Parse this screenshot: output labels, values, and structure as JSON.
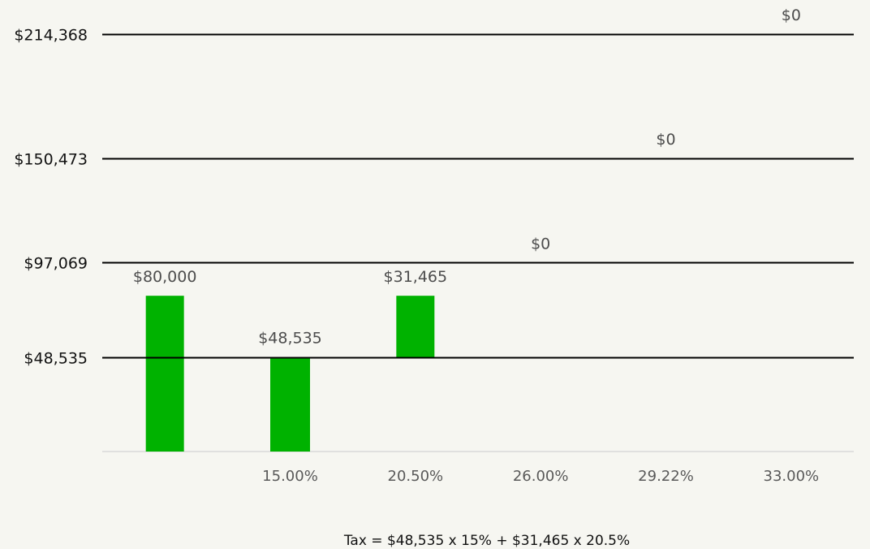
{
  "chart_data": {
    "type": "bar",
    "categories": [
      "",
      "15.00%",
      "20.50%",
      "26.00%",
      "29.22%",
      "33.00%"
    ],
    "values": [
      80000,
      48535,
      31465,
      0,
      0,
      0
    ],
    "value_labels": [
      "$80,000",
      "$48,535",
      "$31,465",
      "$0",
      "$0",
      "$0"
    ],
    "bar_bases": [
      0,
      0,
      48535,
      97069,
      150473,
      214368
    ],
    "threshold_lines": [
      {
        "value": 48535,
        "label": "$48,535"
      },
      {
        "value": 97069,
        "label": "$97,069"
      },
      {
        "value": 150473,
        "label": "$150,473"
      },
      {
        "value": 214368,
        "label": "$214,368"
      }
    ],
    "ylim": [
      0,
      214368
    ],
    "bar_color": "#00b200",
    "grid": false,
    "legend": "none",
    "title": "",
    "xlabel": "",
    "ylabel": ""
  },
  "footnote": "Tax = $48,535 x 15% + $31,465 x 20.5%"
}
